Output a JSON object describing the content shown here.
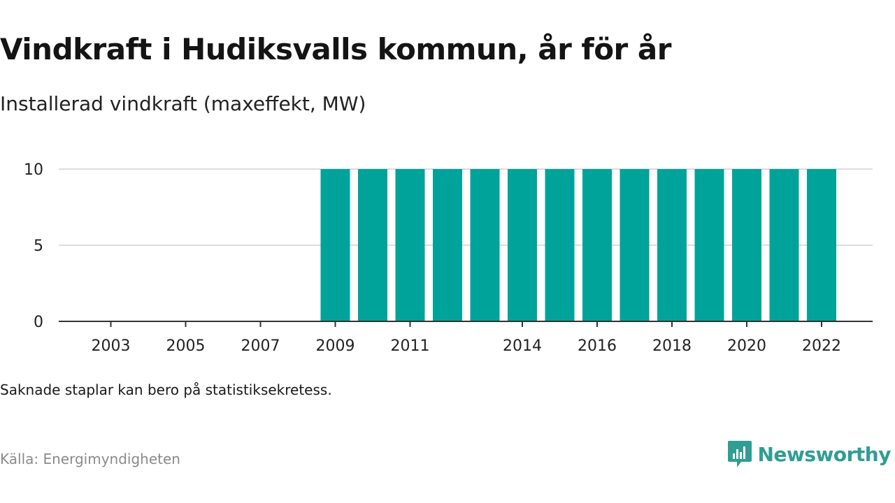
{
  "header": {
    "title": "Vindkraft i Hudiksvalls kommun, år för år",
    "subtitle": "Installerad vindkraft (maxeffekt, MW)"
  },
  "footer": {
    "note": "Saknade staplar kan bero på statistiksekretess.",
    "source": "Källa: Energimyndigheten",
    "brand": "Newsworthy",
    "brand_icon": "newsworthy-logo-icon"
  },
  "colors": {
    "bar": "#00a39a",
    "grid": "#dddddd",
    "axis": "#333333",
    "brand": "#2f9d93"
  },
  "chart_data": {
    "type": "bar",
    "categories": [
      "2003",
      "2004",
      "2005",
      "2006",
      "2007",
      "2008",
      "2009",
      "2010",
      "2011",
      "2012",
      "2013",
      "2014",
      "2015",
      "2016",
      "2017",
      "2018",
      "2019",
      "2020",
      "2021",
      "2022"
    ],
    "values": [
      null,
      null,
      null,
      null,
      null,
      null,
      10,
      10,
      10,
      10,
      10,
      10,
      10,
      10,
      10,
      10,
      10,
      10,
      10,
      10
    ],
    "x_tick_labels": [
      "2003",
      "2005",
      "2007",
      "2009",
      "2011",
      "2014",
      "2016",
      "2018",
      "2020",
      "2022"
    ],
    "y_ticks": [
      0,
      5,
      10
    ],
    "ylim": [
      0,
      10
    ],
    "title": "Vindkraft i Hudiksvalls kommun, år för år",
    "xlabel": "",
    "ylabel": "",
    "grid": true
  }
}
